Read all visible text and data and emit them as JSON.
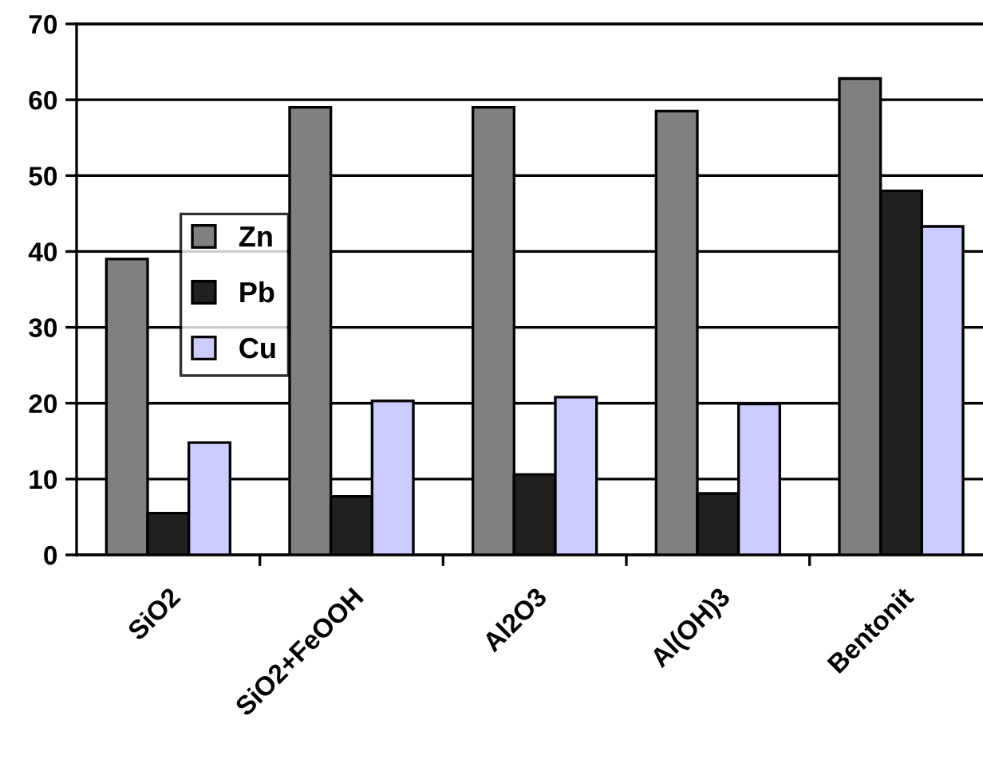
{
  "chart_data": {
    "type": "bar",
    "categories": [
      "SiO2",
      "SiO2+FeOOH",
      "Al2O3",
      "Al(OH)3",
      "Bentonit"
    ],
    "series": [
      {
        "name": "Zn",
        "color": "#808080",
        "values": [
          39.0,
          59.0,
          59.0,
          58.5,
          62.8
        ]
      },
      {
        "name": "Pb",
        "color": "#202020",
        "values": [
          5.5,
          7.7,
          10.6,
          8.1,
          48.0
        ]
      },
      {
        "name": "Cu",
        "color": "#ccccff",
        "values": [
          14.8,
          20.3,
          20.8,
          19.9,
          43.3
        ]
      }
    ],
    "ylim": [
      0,
      70
    ],
    "yticks": [
      0,
      10,
      20,
      30,
      40,
      50,
      60,
      70
    ],
    "grid": "y",
    "legend": "left"
  }
}
